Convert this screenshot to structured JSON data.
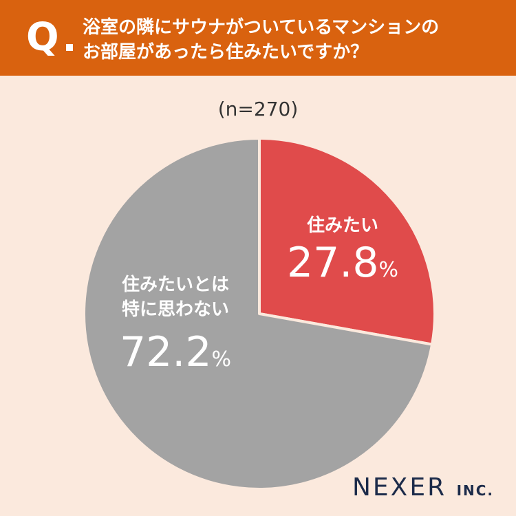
{
  "header": {
    "q_label": "Q",
    "question_line1": "浴室の隣にサウナがついているマンションの",
    "question_line2": "お部屋があったら住みたいですか？"
  },
  "sample_size": "(n=270)",
  "chart_data": {
    "type": "pie",
    "title": "浴室の隣にサウナがついているマンションのお部屋があったら住みたいですか？",
    "n": 270,
    "slices": [
      {
        "label": "住みたい",
        "label_lines": [
          "住みたい"
        ],
        "value": 27.8,
        "display": "27.8",
        "unit": "%",
        "color": "#e04b4b"
      },
      {
        "label": "住みたいとは特に思わない",
        "label_lines": [
          "住みたいとは",
          "特に思わない"
        ],
        "value": 72.2,
        "display": "72.2",
        "unit": "%",
        "color": "#a3a3a3"
      }
    ],
    "start_angle": "12 o'clock",
    "direction": "clockwise"
  },
  "brand": {
    "name": "NEXER",
    "suffix": "INC."
  },
  "colors": {
    "header_bg": "#d9620f",
    "background": "#fbe9dd",
    "slice_border": "#fbe9dd",
    "brand_text": "#1c2b4a"
  }
}
